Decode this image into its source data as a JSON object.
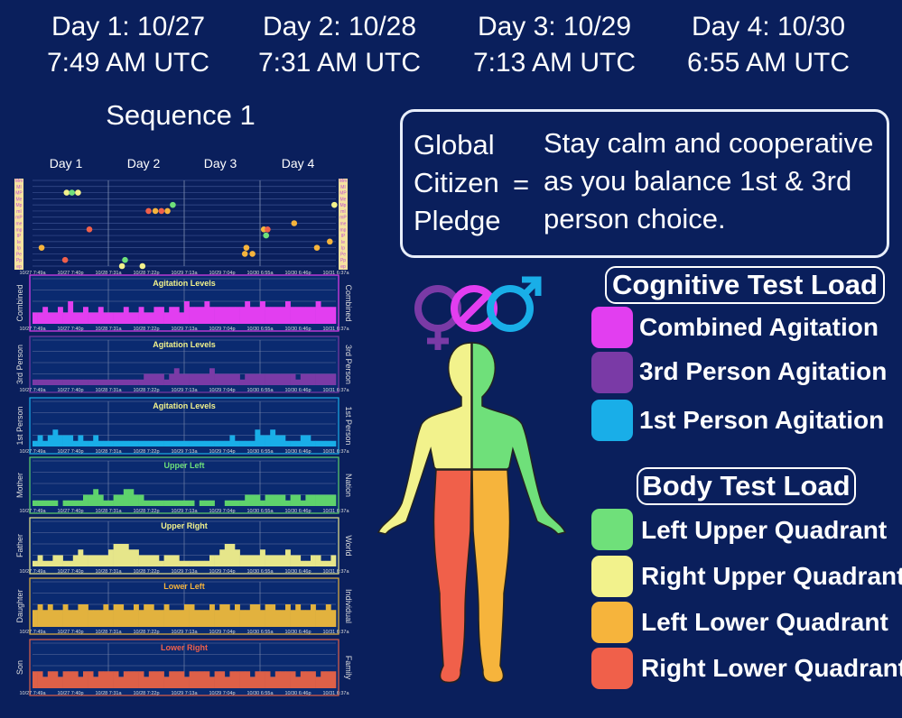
{
  "header": {
    "days": [
      {
        "label": "Day 1:  10/27",
        "time": "7:49 AM UTC"
      },
      {
        "label": "Day 2:  10/28",
        "time": "7:31 AM UTC"
      },
      {
        "label": "Day 3:  10/29",
        "time": "7:13 AM UTC"
      },
      {
        "label": "Day 4:  10/30",
        "time": "6:55 AM UTC"
      }
    ]
  },
  "sequence_title": "Sequence 1",
  "chart_days": [
    "Day 1",
    "Day 2",
    "Day 3",
    "Day 4"
  ],
  "pledge": {
    "left": [
      "Global",
      "Citizen",
      "Pledge"
    ],
    "equals": "=",
    "right": [
      "Stay calm and cooperative",
      "as you balance 1st & 3rd",
      "person choice."
    ]
  },
  "cognitive": {
    "title": "Cognitive Test Load",
    "items": [
      {
        "label": "Combined Agitation",
        "color": "#e23ef0"
      },
      {
        "label": "3rd Person Agitation",
        "color": "#7a3aa6"
      },
      {
        "label": "1st Person Agitation",
        "color": "#19aee8"
      }
    ]
  },
  "body": {
    "title": "Body Test Load",
    "items": [
      {
        "label": "Left Upper Quadrant",
        "color": "#6fe07a"
      },
      {
        "label": "Right Upper Quadrant",
        "color": "#f2f28c"
      },
      {
        "label": "Left Lower Quadrant",
        "color": "#f6b43c"
      },
      {
        "label": "Right Lower Quadrant",
        "color": "#f0604a"
      }
    ]
  },
  "chart_data": {
    "type": "scatter+bar",
    "x_ticks": [
      "10/27 7:49a",
      "10/27 7:40p",
      "10/28 7:31a",
      "10/28 7:22p",
      "10/29 7:13a",
      "10/29 7:04p",
      "10/30 6:55a",
      "10/30 6:46p",
      "10/31 6:37a"
    ],
    "scatter": {
      "rows": [
        "Mm",
        "MI",
        "MP",
        "Me",
        "Mp",
        "mI",
        "mP",
        "me",
        "mp",
        "IP",
        "Ie",
        "Ip",
        "Pe",
        "Pp",
        "ep"
      ],
      "points": [
        [
          0.45,
          2,
          "#f2f28c"
        ],
        [
          0.52,
          2,
          "#6fe07a"
        ],
        [
          0.6,
          2,
          "#f2f28c"
        ],
        [
          0.75,
          8,
          "#f0604a"
        ],
        [
          0.12,
          11,
          "#f6b43c"
        ],
        [
          0.43,
          13,
          "#f0604a"
        ],
        [
          1.53,
          5,
          "#f0604a"
        ],
        [
          1.62,
          5,
          "#f6b43c"
        ],
        [
          1.7,
          5,
          "#f0604a"
        ],
        [
          1.78,
          5,
          "#f6b43c"
        ],
        [
          1.85,
          4,
          "#6fe07a"
        ],
        [
          1.22,
          13,
          "#6fe07a"
        ],
        [
          1.18,
          14,
          "#f2f28c"
        ],
        [
          1.45,
          14,
          "#f2f28c"
        ],
        [
          2.82,
          11,
          "#f6b43c"
        ],
        [
          2.8,
          12,
          "#f6b43c"
        ],
        [
          2.9,
          12,
          "#f6b43c"
        ],
        [
          3.05,
          8,
          "#f6b43c"
        ],
        [
          3.1,
          8,
          "#f0604a"
        ],
        [
          3.08,
          9,
          "#6fe07a"
        ],
        [
          3.45,
          7,
          "#f6b43c"
        ],
        [
          3.75,
          11,
          "#f6b43c"
        ],
        [
          3.92,
          10,
          "#f6b43c"
        ],
        [
          3.98,
          4,
          "#f2f28c"
        ]
      ]
    },
    "bars": [
      {
        "title": "Agitation Levels",
        "left": "Combined",
        "right": "Combined",
        "color": "#e23ef0",
        "title_color": "#f2f28c",
        "values": [
          2,
          2,
          3,
          2,
          2,
          3,
          2,
          4,
          2,
          2,
          3,
          2,
          2,
          3,
          2,
          2,
          2,
          2,
          3,
          2,
          2,
          3,
          2,
          2,
          3,
          3,
          2,
          3,
          3,
          2,
          4,
          3,
          3,
          3,
          4,
          3,
          3,
          3,
          3,
          3,
          3,
          3,
          4,
          3,
          3,
          4,
          3,
          3,
          3,
          3,
          4,
          3,
          3,
          3,
          3,
          3,
          4,
          3,
          3,
          3
        ]
      },
      {
        "title": "Agitation Levels",
        "left": "3rd Person",
        "right": "3rd Person",
        "color": "#7a3aa6",
        "title_color": "#f2f28c",
        "values": [
          1,
          1,
          1,
          1,
          1,
          1,
          1,
          1,
          1,
          1,
          1,
          1,
          1,
          1,
          1,
          1,
          1,
          1,
          1,
          1,
          1,
          1,
          2,
          2,
          2,
          2,
          1,
          2,
          3,
          2,
          2,
          2,
          2,
          2,
          2,
          3,
          2,
          2,
          2,
          2,
          2,
          1,
          2,
          2,
          2,
          2,
          2,
          2,
          2,
          2,
          2,
          2,
          1,
          2,
          2,
          2,
          2,
          2,
          2,
          2
        ]
      },
      {
        "title": "Agitation Levels",
        "left": "1st Person",
        "right": "1st Person",
        "color": "#19aee8",
        "title_color": "#f2f28c",
        "values": [
          1,
          2,
          1,
          2,
          3,
          2,
          2,
          2,
          1,
          2,
          1,
          1,
          2,
          1,
          1,
          1,
          1,
          1,
          1,
          1,
          1,
          1,
          1,
          1,
          1,
          1,
          1,
          1,
          1,
          1,
          1,
          1,
          1,
          1,
          1,
          1,
          1,
          1,
          1,
          2,
          1,
          1,
          1,
          1,
          3,
          2,
          2,
          3,
          2,
          2,
          1,
          1,
          1,
          2,
          2,
          1,
          1,
          1,
          1,
          1
        ]
      },
      {
        "title": "Upper Left",
        "left": "Mother",
        "right": "Nation",
        "color": "#5ed36c",
        "title_color": "#6fe07a",
        "values": [
          1,
          1,
          1,
          1,
          1,
          0,
          1,
          1,
          1,
          1,
          2,
          2,
          3,
          2,
          1,
          1,
          2,
          2,
          3,
          3,
          2,
          2,
          1,
          1,
          1,
          1,
          1,
          1,
          1,
          1,
          1,
          1,
          0,
          1,
          1,
          1,
          0,
          0,
          1,
          1,
          1,
          1,
          2,
          2,
          2,
          1,
          2,
          2,
          2,
          2,
          1,
          2,
          2,
          1,
          2,
          2,
          2,
          2,
          2,
          2
        ]
      },
      {
        "title": "Upper Right",
        "left": "Father",
        "right": "World",
        "color": "#e6e68a",
        "title_color": "#f2f28c",
        "values": [
          1,
          2,
          1,
          1,
          2,
          2,
          1,
          1,
          2,
          3,
          2,
          2,
          2,
          2,
          2,
          3,
          4,
          4,
          4,
          3,
          3,
          2,
          2,
          2,
          2,
          1,
          2,
          2,
          2,
          1,
          1,
          1,
          1,
          1,
          1,
          2,
          2,
          3,
          4,
          4,
          3,
          2,
          2,
          2,
          2,
          3,
          2,
          2,
          2,
          2,
          3,
          2,
          2,
          1,
          1,
          2,
          2,
          1,
          1,
          2
        ]
      },
      {
        "title": "Lower Left",
        "left": "Daughter",
        "right": "Individual",
        "color": "#e2b23e",
        "title_color": "#f6b43c",
        "values": [
          3,
          4,
          3,
          4,
          3,
          3,
          4,
          3,
          3,
          4,
          4,
          3,
          3,
          3,
          4,
          3,
          4,
          4,
          3,
          3,
          4,
          3,
          4,
          4,
          3,
          3,
          4,
          3,
          3,
          3,
          4,
          4,
          3,
          3,
          3,
          4,
          3,
          4,
          4,
          3,
          4,
          3,
          3,
          4,
          4,
          3,
          4,
          4,
          3,
          3,
          4,
          3,
          4,
          3,
          3,
          4,
          3,
          3,
          4,
          3
        ]
      },
      {
        "title": "Lower Right",
        "left": "Son",
        "right": "Family",
        "color": "#de6048",
        "title_color": "#f0604a",
        "values": [
          3,
          3,
          2,
          3,
          3,
          2,
          3,
          3,
          3,
          2,
          3,
          3,
          2,
          3,
          3,
          3,
          3,
          2,
          3,
          3,
          3,
          3,
          2,
          3,
          3,
          3,
          2,
          3,
          3,
          3,
          2,
          3,
          3,
          3,
          3,
          2,
          3,
          3,
          2,
          3,
          3,
          3,
          3,
          2,
          3,
          3,
          3,
          2,
          3,
          3,
          3,
          3,
          2,
          3,
          3,
          3,
          2,
          3,
          3,
          3
        ]
      }
    ],
    "y_max": 8
  }
}
